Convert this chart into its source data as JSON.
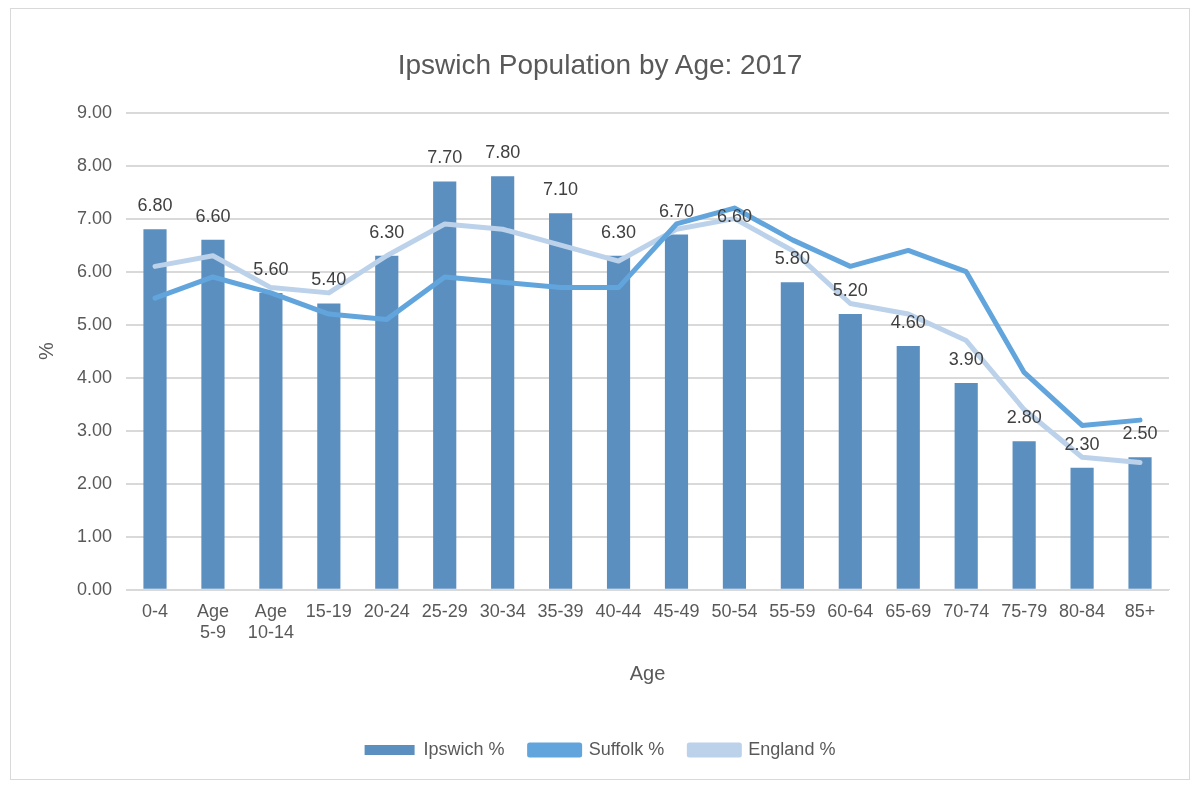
{
  "chart_data": {
    "type": "bar",
    "title": "Ipswich Population by Age: 2017",
    "xlabel": "Age",
    "ylabel": "%",
    "categories": [
      "0-4",
      "Age 5-9",
      "Age 10-14",
      "15-19",
      "20-24",
      "25-29",
      "30-34",
      "35-39",
      "40-44",
      "45-49",
      "50-54",
      "55-59",
      "60-64",
      "65-69",
      "70-74",
      "75-79",
      "80-84",
      "85+"
    ],
    "series": [
      {
        "name": "Ipswich %",
        "color": "#5b8fbf",
        "values": [
          6.8,
          6.6,
          5.6,
          5.4,
          6.3,
          7.7,
          7.8,
          7.1,
          6.3,
          6.7,
          6.6,
          5.8,
          5.2,
          4.6,
          3.9,
          2.8,
          2.3,
          2.5
        ],
        "value_labels": [
          "6.80",
          "6.60",
          "5.60",
          "5.40",
          "6.30",
          "7.70",
          "7.80",
          "7.10",
          "6.30",
          "6.70",
          "6.60",
          "5.80",
          "5.20",
          "4.60",
          "3.90",
          "2.80",
          "2.30",
          "2.50"
        ]
      },
      {
        "name": "Suffolk %",
        "type": "line",
        "color": "#62a5dc",
        "values": [
          5.5,
          5.9,
          5.6,
          5.2,
          5.1,
          5.9,
          5.8,
          5.7,
          5.7,
          6.9,
          7.2,
          6.6,
          6.1,
          6.4,
          6.0,
          4.1,
          3.1,
          3.2
        ]
      },
      {
        "name": "England %",
        "type": "line",
        "color": "#bcd2ea",
        "values": [
          6.1,
          6.3,
          5.7,
          5.6,
          6.3,
          6.9,
          6.8,
          6.5,
          6.2,
          6.8,
          7.0,
          6.4,
          5.4,
          5.2,
          4.7,
          3.4,
          2.5,
          2.4
        ]
      }
    ],
    "ylim": [
      0,
      9
    ],
    "yticks": [
      {
        "value": 0,
        "label": "0.00"
      },
      {
        "value": 1,
        "label": "1.00"
      },
      {
        "value": 2,
        "label": "2.00"
      },
      {
        "value": 3,
        "label": "3.00"
      },
      {
        "value": 4,
        "label": "4.00"
      },
      {
        "value": 5,
        "label": "5.00"
      },
      {
        "value": 6,
        "label": "6.00"
      },
      {
        "value": 7,
        "label": "7.00"
      },
      {
        "value": 8,
        "label": "8.00"
      },
      {
        "value": 9,
        "label": "9.00"
      }
    ],
    "grid": "y",
    "legend": "bottom",
    "marker": "none",
    "line_style": "solid"
  }
}
